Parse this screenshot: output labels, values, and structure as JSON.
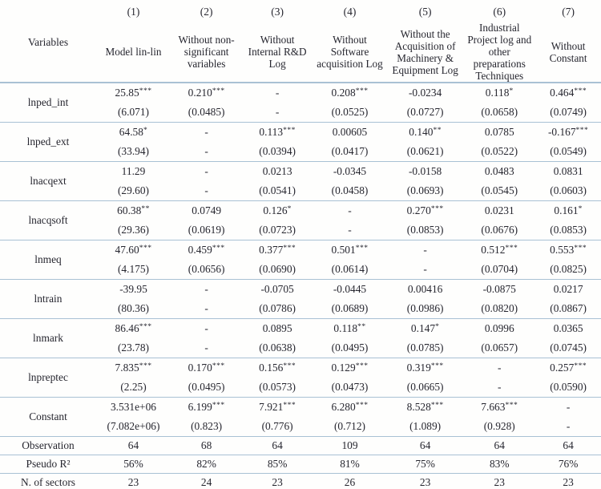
{
  "colors": {
    "rule": "#a9c1d4",
    "text": "#26262f",
    "background": "#fefefd"
  },
  "table": {
    "corner_label": "Variables",
    "columns": [
      {
        "num": "(1)",
        "label": "Model lin-lin"
      },
      {
        "num": "(2)",
        "label": "Without non-significant variables"
      },
      {
        "num": "(3)",
        "label": "Without Internal R&D Log"
      },
      {
        "num": "(4)",
        "label": "Without Software acquisition Log"
      },
      {
        "num": "(5)",
        "label": "Without the Acquisition of Machinery & Equipment Log"
      },
      {
        "num": "(6)",
        "label": "Industrial Project log and other preparations Techniques"
      },
      {
        "num": "(7)",
        "label": "Without Constant"
      }
    ],
    "variable_rows": [
      {
        "name": "lnped_int",
        "cells": [
          {
            "coef": "25.85***",
            "se": "(6.071)"
          },
          {
            "coef": "0.210***",
            "se": "(0.0485)"
          },
          {
            "coef": "-",
            "se": "-"
          },
          {
            "coef": "0.208***",
            "se": "(0.0525)"
          },
          {
            "coef": "-0.0234",
            "se": "(0.0727)"
          },
          {
            "coef": "0.118*",
            "se": "(0.0658)"
          },
          {
            "coef": "0.464***",
            "se": "(0.0749)"
          }
        ]
      },
      {
        "name": "lnped_ext",
        "cells": [
          {
            "coef": "64.58*",
            "se": "(33.94)"
          },
          {
            "coef": "-",
            "se": "-"
          },
          {
            "coef": "0.113***",
            "se": "(0.0394)"
          },
          {
            "coef": "0.00605",
            "se": "(0.0417)"
          },
          {
            "coef": "0.140**",
            "se": "(0.0621)"
          },
          {
            "coef": "0.0785",
            "se": "(0.0522)"
          },
          {
            "coef": "-0.167***",
            "se": "(0.0549)"
          }
        ]
      },
      {
        "name": "lnacqext",
        "cells": [
          {
            "coef": "11.29",
            "se": "(29.60)"
          },
          {
            "coef": "-",
            "se": "-"
          },
          {
            "coef": "0.0213",
            "se": "(0.0541)"
          },
          {
            "coef": "-0.0345",
            "se": "(0.0458)"
          },
          {
            "coef": "-0.0158",
            "se": "(0.0693)"
          },
          {
            "coef": "0.0483",
            "se": "(0.0545)"
          },
          {
            "coef": "0.0831",
            "se": "(0.0603)"
          }
        ]
      },
      {
        "name": "lnacqsoft",
        "cells": [
          {
            "coef": "60.38**",
            "se": "(29.36)"
          },
          {
            "coef": "0.0749",
            "se": "(0.0619)"
          },
          {
            "coef": "0.126*",
            "se": "(0.0723)"
          },
          {
            "coef": "-",
            "se": "-"
          },
          {
            "coef": "0.270***",
            "se": "(0.0853)"
          },
          {
            "coef": "0.0231",
            "se": "(0.0676)"
          },
          {
            "coef": "0.161*",
            "se": "(0.0853)"
          }
        ]
      },
      {
        "name": "lnmeq",
        "cells": [
          {
            "coef": "47.60***",
            "se": "(4.175)"
          },
          {
            "coef": "0.459***",
            "se": "(0.0656)"
          },
          {
            "coef": "0.377***",
            "se": "(0.0690)"
          },
          {
            "coef": "0.501***",
            "se": "(0.0614)"
          },
          {
            "coef": "-",
            "se": "-"
          },
          {
            "coef": "0.512***",
            "se": "(0.0704)"
          },
          {
            "coef": "0.553***",
            "se": "(0.0825)"
          }
        ]
      },
      {
        "name": "lntrain",
        "cells": [
          {
            "coef": "-39.95",
            "se": "(80.36)"
          },
          {
            "coef": "-",
            "se": "-"
          },
          {
            "coef": "-0.0705",
            "se": "(0.0786)"
          },
          {
            "coef": "-0.0445",
            "se": "(0.0689)"
          },
          {
            "coef": "0.00416",
            "se": "(0.0986)"
          },
          {
            "coef": "-0.0875",
            "se": "(0.0820)"
          },
          {
            "coef": "0.0217",
            "se": "(0.0867)"
          }
        ]
      },
      {
        "name": "lnmark",
        "cells": [
          {
            "coef": "86.46***",
            "se": "(23.78)"
          },
          {
            "coef": "-",
            "se": "-"
          },
          {
            "coef": "0.0895",
            "se": "(0.0638)"
          },
          {
            "coef": "0.118**",
            "se": "(0.0495)"
          },
          {
            "coef": "0.147*",
            "se": "(0.0785)"
          },
          {
            "coef": "0.0996",
            "se": "(0.0657)"
          },
          {
            "coef": "0.0365",
            "se": "(0.0745)"
          }
        ]
      },
      {
        "name": "lnpreptec",
        "cells": [
          {
            "coef": "7.835***",
            "se": "(2.25)"
          },
          {
            "coef": "0.170***",
            "se": "(0.0495)"
          },
          {
            "coef": "0.156***",
            "se": "(0.0573)"
          },
          {
            "coef": "0.129***",
            "se": "(0.0473)"
          },
          {
            "coef": "0.319***",
            "se": "(0.0665)"
          },
          {
            "coef": "-",
            "se": "-"
          },
          {
            "coef": "0.257***",
            "se": "(0.0590)"
          }
        ]
      },
      {
        "name": "Constant",
        "cells": [
          {
            "coef": "3.531e+06",
            "se": "(7.082e+06)"
          },
          {
            "coef": "6.199***",
            "se": "(0.823)"
          },
          {
            "coef": "7.921***",
            "se": "(0.776)"
          },
          {
            "coef": "6.280***",
            "se": "(0.712)"
          },
          {
            "coef": "8.528***",
            "se": "(1.089)"
          },
          {
            "coef": "7.663***",
            "se": "(0.928)"
          },
          {
            "coef": "-",
            "se": "-"
          }
        ]
      }
    ],
    "summary_rows": [
      {
        "name": "Observation",
        "values": [
          "64",
          "68",
          "64",
          "109",
          "64",
          "64",
          "64"
        ]
      },
      {
        "name": "Pseudo R²",
        "values": [
          "56%",
          "82%",
          "85%",
          "81%",
          "75%",
          "83%",
          "76%"
        ]
      },
      {
        "name": "N. of sectors",
        "values": [
          "23",
          "24",
          "23",
          "26",
          "23",
          "23",
          "23"
        ]
      }
    ]
  }
}
